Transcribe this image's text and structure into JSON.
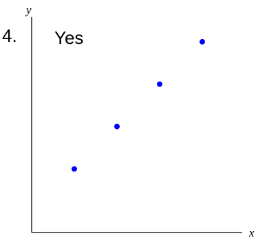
{
  "question": {
    "number": "4.",
    "answer": "Yes"
  },
  "colors": {
    "axis": "#000000",
    "point": "#0000ff"
  },
  "chart_data": {
    "type": "scatter",
    "title": "",
    "xlabel": "x",
    "ylabel": "y",
    "x_ticks": [],
    "y_ticks": [],
    "grid": false,
    "legend": "none",
    "xlim": [
      0,
      10
    ],
    "ylim": [
      0,
      10
    ],
    "series": [
      {
        "x": [
          2,
          4,
          6,
          8
        ],
        "y": [
          3,
          5,
          7,
          9
        ]
      }
    ]
  }
}
